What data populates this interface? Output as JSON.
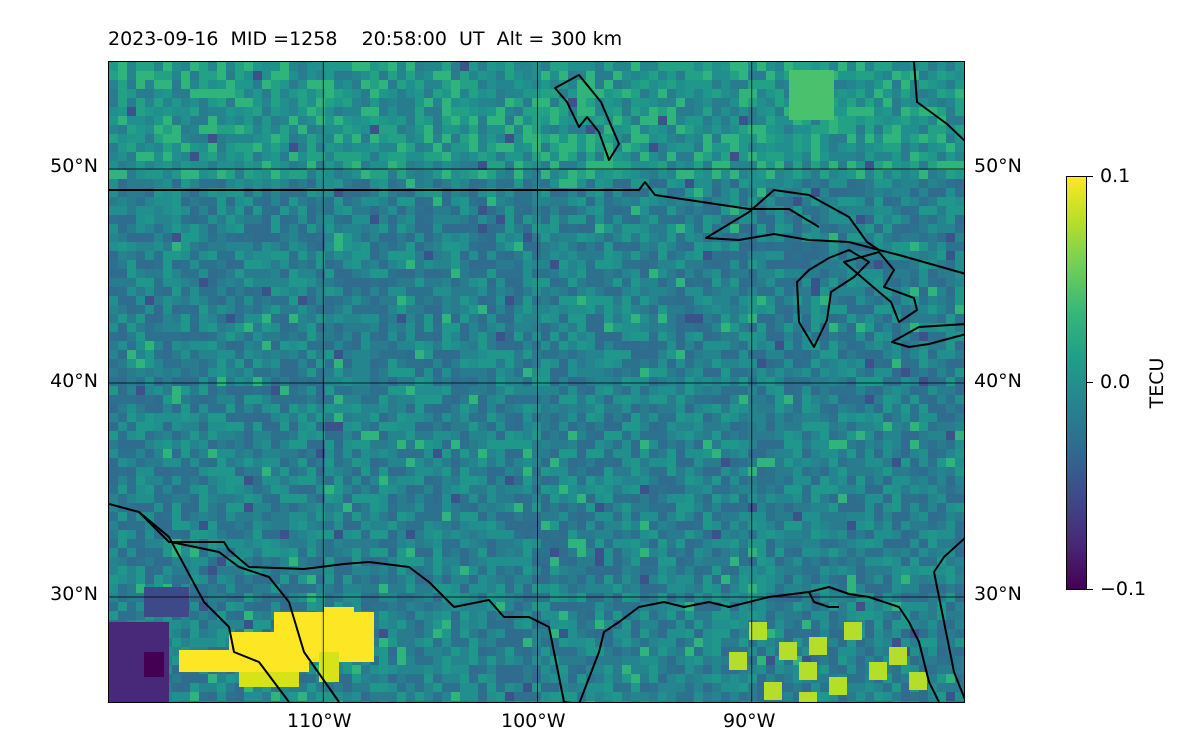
{
  "title": "2023-09-16  MID =1258    20:58:00  UT  Alt = 300 km",
  "map": {
    "extent": {
      "lon": [
        -120,
        -80
      ],
      "lat": [
        25,
        55
      ]
    },
    "lat_ticks": [
      {
        "value": 50,
        "label": "50°N"
      },
      {
        "value": 40,
        "label": "40°N"
      },
      {
        "value": 30,
        "label": "30°N"
      }
    ],
    "lon_ticks": [
      {
        "value": -110,
        "label": "110°W"
      },
      {
        "value": -100,
        "label": "100°W"
      },
      {
        "value": -90,
        "label": "90°W"
      }
    ],
    "gridlines": true,
    "coastlines": true
  },
  "colorbar": {
    "label": "TECU",
    "colormap": "viridis",
    "range": [
      -0.1,
      0.1
    ],
    "ticks": [
      {
        "value": 0.1,
        "label": "0.1"
      },
      {
        "value": 0.0,
        "label": "0.0"
      },
      {
        "value": -0.1,
        "label": "−0.1"
      }
    ]
  }
}
